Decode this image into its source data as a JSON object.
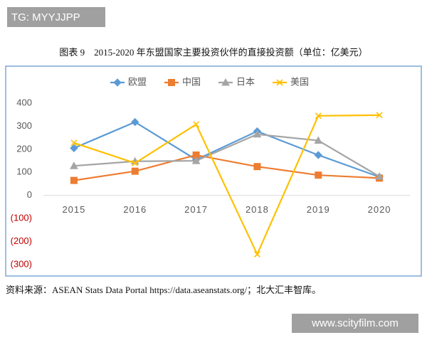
{
  "watermark_top": "TG: MYYJJPP",
  "chart_data": {
    "type": "line",
    "title": "图表 9　2015-2020 年东盟国家主要投资伙伴的直接投资额（单位：亿美元）",
    "categories": [
      "2015",
      "2016",
      "2017",
      "2018",
      "2019",
      "2020"
    ],
    "series": [
      {
        "name": "欧盟",
        "color": "#5b9bd5",
        "marker": "diamond",
        "values": [
          205,
          318,
          155,
          278,
          175,
          80
        ]
      },
      {
        "name": "中国",
        "color": "#ed7d31",
        "marker": "square",
        "values": [
          65,
          105,
          175,
          125,
          88,
          75
        ]
      },
      {
        "name": "日本",
        "color": "#a5a5a5",
        "marker": "triangle",
        "values": [
          128,
          148,
          150,
          265,
          238,
          82
        ]
      },
      {
        "name": "美国",
        "color": "#ffc000",
        "marker": "x",
        "values": [
          228,
          140,
          308,
          -255,
          345,
          348
        ]
      }
    ],
    "ylim": [
      -300,
      400
    ],
    "yticks": [
      {
        "value": -300,
        "label": "(300)"
      },
      {
        "value": -200,
        "label": "(200)"
      },
      {
        "value": -100,
        "label": "(100)"
      },
      0,
      100,
      200,
      300,
      400
    ],
    "negative_tick_color": "#c00000",
    "legend": "top",
    "grid": false,
    "source": "资料来源：ASEAN Stats Data Portal https://data.aseanstats.org/；北大汇丰智库。"
  },
  "watermark_bottom": "www.scityfilm.com"
}
